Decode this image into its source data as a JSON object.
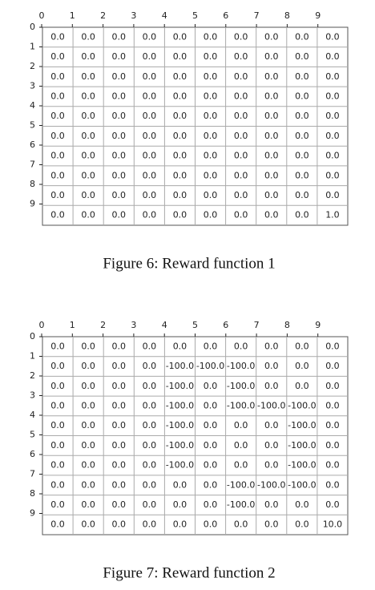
{
  "figures": [
    {
      "xticks": [
        0,
        1,
        2,
        3,
        4,
        5,
        6,
        7,
        8,
        9
      ],
      "yticks": [
        0,
        1,
        2,
        3,
        4,
        5,
        6,
        7,
        8,
        9
      ],
      "grid": [
        [
          "0.0",
          "0.0",
          "0.0",
          "0.0",
          "0.0",
          "0.0",
          "0.0",
          "0.0",
          "0.0",
          "0.0"
        ],
        [
          "0.0",
          "0.0",
          "0.0",
          "0.0",
          "0.0",
          "0.0",
          "0.0",
          "0.0",
          "0.0",
          "0.0"
        ],
        [
          "0.0",
          "0.0",
          "0.0",
          "0.0",
          "0.0",
          "0.0",
          "0.0",
          "0.0",
          "0.0",
          "0.0"
        ],
        [
          "0.0",
          "0.0",
          "0.0",
          "0.0",
          "0.0",
          "0.0",
          "0.0",
          "0.0",
          "0.0",
          "0.0"
        ],
        [
          "0.0",
          "0.0",
          "0.0",
          "0.0",
          "0.0",
          "0.0",
          "0.0",
          "0.0",
          "0.0",
          "0.0"
        ],
        [
          "0.0",
          "0.0",
          "0.0",
          "0.0",
          "0.0",
          "0.0",
          "0.0",
          "0.0",
          "0.0",
          "0.0"
        ],
        [
          "0.0",
          "0.0",
          "0.0",
          "0.0",
          "0.0",
          "0.0",
          "0.0",
          "0.0",
          "0.0",
          "0.0"
        ],
        [
          "0.0",
          "0.0",
          "0.0",
          "0.0",
          "0.0",
          "0.0",
          "0.0",
          "0.0",
          "0.0",
          "0.0"
        ],
        [
          "0.0",
          "0.0",
          "0.0",
          "0.0",
          "0.0",
          "0.0",
          "0.0",
          "0.0",
          "0.0",
          "0.0"
        ],
        [
          "0.0",
          "0.0",
          "0.0",
          "0.0",
          "0.0",
          "0.0",
          "0.0",
          "0.0",
          "0.0",
          "1.0"
        ]
      ],
      "caption": "Figure 6:  Reward function 1"
    },
    {
      "xticks": [
        0,
        1,
        2,
        3,
        4,
        5,
        6,
        7,
        8,
        9
      ],
      "yticks": [
        0,
        1,
        2,
        3,
        4,
        5,
        6,
        7,
        8,
        9
      ],
      "grid": [
        [
          "0.0",
          "0.0",
          "0.0",
          "0.0",
          "0.0",
          "0.0",
          "0.0",
          "0.0",
          "0.0",
          "0.0"
        ],
        [
          "0.0",
          "0.0",
          "0.0",
          "0.0",
          "-100.0",
          "-100.0",
          "-100.0",
          "0.0",
          "0.0",
          "0.0"
        ],
        [
          "0.0",
          "0.0",
          "0.0",
          "0.0",
          "-100.0",
          "0.0",
          "-100.0",
          "0.0",
          "0.0",
          "0.0"
        ],
        [
          "0.0",
          "0.0",
          "0.0",
          "0.0",
          "-100.0",
          "0.0",
          "-100.0",
          "-100.0",
          "-100.0",
          "0.0"
        ],
        [
          "0.0",
          "0.0",
          "0.0",
          "0.0",
          "-100.0",
          "0.0",
          "0.0",
          "0.0",
          "-100.0",
          "0.0"
        ],
        [
          "0.0",
          "0.0",
          "0.0",
          "0.0",
          "-100.0",
          "0.0",
          "0.0",
          "0.0",
          "-100.0",
          "0.0"
        ],
        [
          "0.0",
          "0.0",
          "0.0",
          "0.0",
          "-100.0",
          "0.0",
          "0.0",
          "0.0",
          "-100.0",
          "0.0"
        ],
        [
          "0.0",
          "0.0",
          "0.0",
          "0.0",
          "0.0",
          "0.0",
          "-100.0",
          "-100.0",
          "-100.0",
          "0.0"
        ],
        [
          "0.0",
          "0.0",
          "0.0",
          "0.0",
          "0.0",
          "0.0",
          "-100.0",
          "0.0",
          "0.0",
          "0.0"
        ],
        [
          "0.0",
          "0.0",
          "0.0",
          "0.0",
          "0.0",
          "0.0",
          "0.0",
          "0.0",
          "0.0",
          "10.0"
        ]
      ],
      "caption": "Figure 7:  Reward function 2"
    }
  ]
}
